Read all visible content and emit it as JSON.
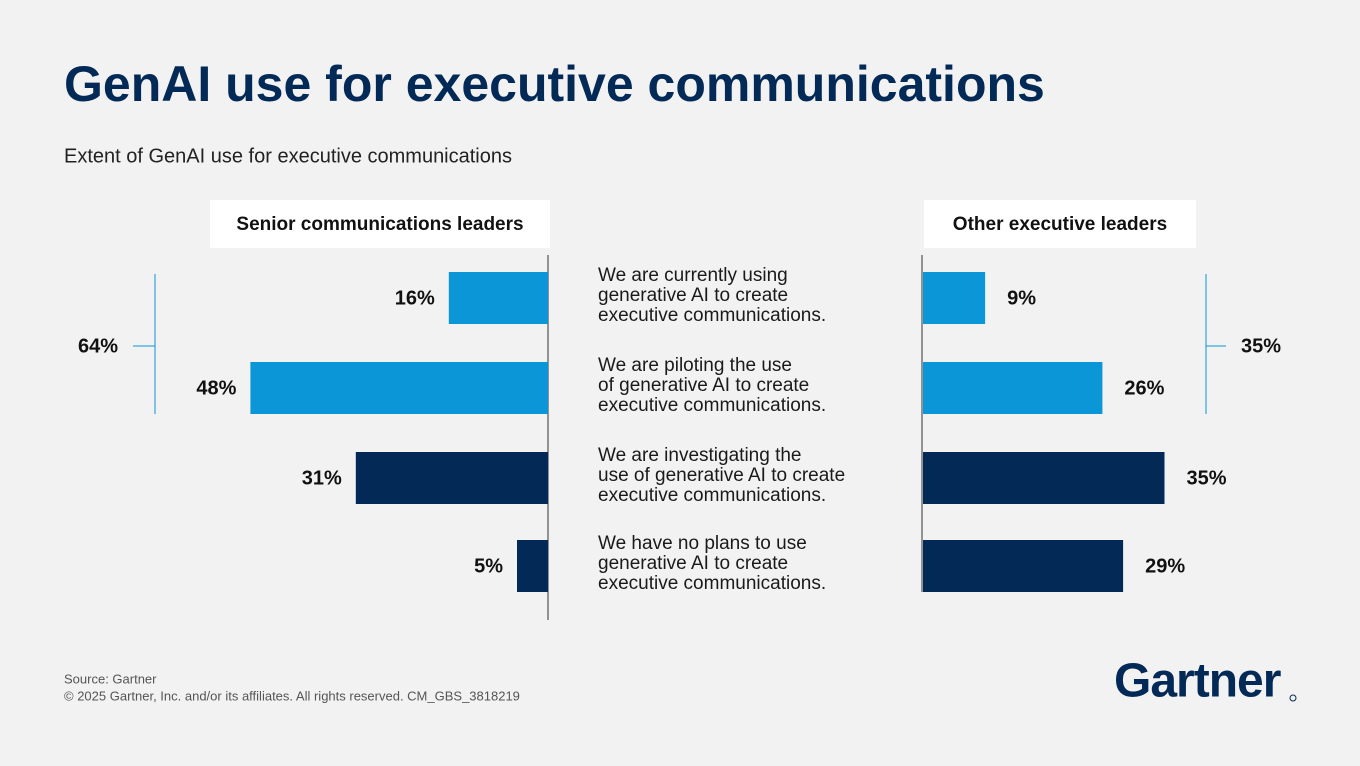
{
  "chart_data": {
    "type": "bar",
    "title": "GenAI use for executive communications",
    "subtitle": "Extent of GenAI use for executive communications",
    "categories": [
      "We are currently using\ngenerative AI to create\nexecutive communications.",
      "We are piloting the use\nof generative AI to create\nexecutive communications.",
      "We are investigating the\nuse of generative AI to create\nexecutive communications.",
      "We have no plans to use\ngenerative AI to create\nexecutive communications."
    ],
    "colors": [
      "#0b96d7",
      "#0b96d7",
      "#032a57",
      "#032a57"
    ],
    "series": [
      {
        "name": "Senior communications leaders",
        "values": [
          16,
          48,
          31,
          5
        ],
        "value_labels": [
          "16%",
          "48%",
          "31%",
          "5%"
        ]
      },
      {
        "name": "Other executive leaders",
        "values": [
          9,
          26,
          35,
          29
        ],
        "value_labels": [
          "9%",
          "26%",
          "35%",
          "29%"
        ]
      }
    ],
    "brackets": [
      {
        "value": 64,
        "label": "64%"
      },
      {
        "value": 35,
        "label": "35%"
      }
    ]
  },
  "footer": {
    "source": "Source: Gartner",
    "copyright": "© 2025 Gartner, Inc. and/or its affiliates. All rights reserved. CM_GBS_3818219",
    "logo": "Gartner"
  }
}
